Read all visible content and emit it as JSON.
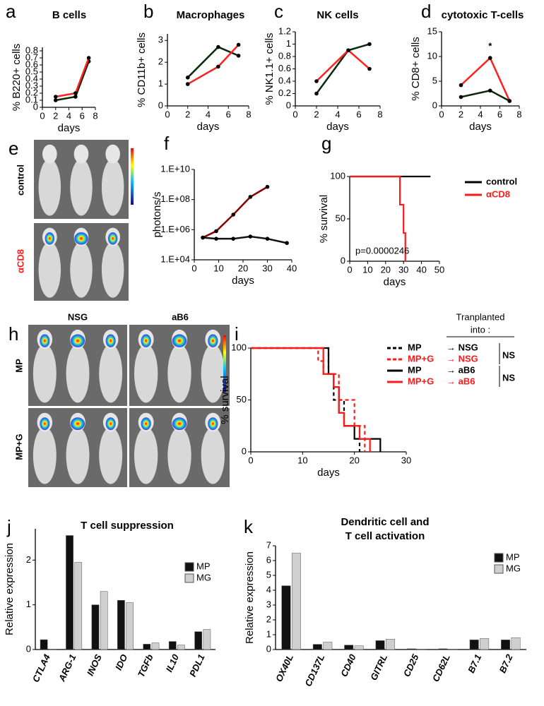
{
  "panels": {
    "e": {
      "label": "e",
      "rows": [
        "control",
        "αCD8"
      ]
    },
    "h": {
      "label": "h",
      "columns": [
        "NSG",
        "aB6"
      ],
      "rows": [
        "MP",
        "MP+G"
      ]
    }
  },
  "chart_data": [
    {
      "type": "line",
      "panel": "a",
      "title": "B cells",
      "y_label": "% B220+ cells",
      "x_label": "days",
      "x": [
        2,
        5,
        7
      ],
      "xlim": [
        0,
        8
      ],
      "xticks": [
        0,
        2,
        4,
        6,
        8
      ],
      "ylim": [
        0,
        0.85
      ],
      "yticks": [
        0,
        0.1,
        0.2,
        0.3,
        0.4,
        0.5,
        0.6,
        0.7,
        0.8
      ],
      "series": [
        {
          "color": "#0b2a0b",
          "values": [
            0.1,
            0.15,
            0.65
          ]
        },
        {
          "color": "#ff2020",
          "values": [
            0.15,
            0.2,
            0.7
          ]
        }
      ]
    },
    {
      "type": "line",
      "panel": "b",
      "title": "Macrophages",
      "y_label": "% CD11b+ cells",
      "x_label": "days",
      "x": [
        2,
        5,
        7
      ],
      "xlim": [
        0,
        8
      ],
      "xticks": [
        0,
        2,
        4,
        6,
        8
      ],
      "ylim": [
        0,
        3.3
      ],
      "yticks": [
        0,
        1,
        2,
        3
      ],
      "series": [
        {
          "color": "#0b2a0b",
          "values": [
            1.3,
            2.7,
            2.3
          ]
        },
        {
          "color": "#ff2020",
          "values": [
            1.0,
            1.8,
            2.8
          ]
        }
      ]
    },
    {
      "type": "line",
      "panel": "c",
      "title": "NK cells",
      "y_label": "% NK1.1+ cells",
      "x_label": "days",
      "x": [
        2,
        5,
        7
      ],
      "xlim": [
        0,
        8
      ],
      "xticks": [
        0,
        2,
        4,
        6,
        8
      ],
      "ylim": [
        0,
        1.2
      ],
      "yticks": [
        0,
        0.2,
        0.4,
        0.6,
        0.8,
        1,
        1.2
      ],
      "series": [
        {
          "color": "#0b2a0b",
          "values": [
            0.2,
            0.9,
            1.0
          ]
        },
        {
          "color": "#ff2020",
          "values": [
            0.4,
            0.9,
            0.6
          ]
        }
      ]
    },
    {
      "type": "line",
      "panel": "d",
      "title": "cytotoxic T-cells",
      "y_label": "% CD8+ cells",
      "x_label": "days",
      "annotation": "*",
      "x": [
        2,
        5,
        7
      ],
      "xlim": [
        0,
        8
      ],
      "xticks": [
        0,
        2,
        4,
        6,
        8
      ],
      "ylim": [
        0,
        15
      ],
      "yticks": [
        0,
        5,
        10,
        15
      ],
      "series": [
        {
          "color": "#ff2020",
          "values": [
            4.2,
            9.7,
            1.0
          ]
        },
        {
          "color": "#0b2a0b",
          "values": [
            1.8,
            3.1,
            1.0
          ]
        }
      ]
    },
    {
      "type": "line",
      "panel": "f",
      "y_label": "photons/s",
      "x_label": "days",
      "ylog": true,
      "x": [
        3.5,
        9,
        16,
        23,
        30,
        38
      ],
      "xlim": [
        0,
        40
      ],
      "xticks": [
        0,
        10,
        20,
        30,
        40
      ],
      "ylim": [
        10000,
        10000000000
      ],
      "yticks": [
        {
          "value": 10000,
          "label": "1.E+04"
        },
        {
          "value": 1000000,
          "label": "1.E+06"
        },
        {
          "value": 100000000,
          "label": "1.E+08"
        },
        {
          "value": 10000000000,
          "label": "1.E+10"
        }
      ],
      "series": [
        {
          "color": "#8b0000",
          "values": [
            300000,
            800000,
            10000000,
            150000000,
            700000000,
            null
          ]
        },
        {
          "color": "#111111",
          "values": [
            300000,
            250000,
            250000,
            350000,
            250000,
            130000
          ]
        }
      ]
    },
    {
      "type": "step",
      "panel": "g",
      "y_label": "% survival",
      "x_label": "days",
      "annotation": "p=0.0000246",
      "xlim": [
        0,
        50
      ],
      "xticks": [
        0,
        10,
        20,
        30,
        40,
        50
      ],
      "ylim": [
        0,
        100
      ],
      "yticks": [
        0,
        50,
        100
      ],
      "series": [
        {
          "name": "control",
          "color": "#000000",
          "x": [
            0,
            45
          ],
          "values": [
            100,
            100
          ]
        },
        {
          "name": "αCD8",
          "color": "#ff1a1a",
          "x": [
            0,
            28,
            30,
            31
          ],
          "values": [
            100,
            66.7,
            33.3,
            0
          ]
        }
      ]
    },
    {
      "type": "step",
      "panel": "i",
      "y_label": "% survival",
      "x_label": "days",
      "legend_title": [
        "Tranplanted",
        "into :"
      ],
      "ns_labels": [
        "NS",
        "NS"
      ],
      "xlim": [
        0,
        30
      ],
      "xticks": [
        0,
        10,
        20,
        30
      ],
      "ylim": [
        0,
        100
      ],
      "yticks": [
        0,
        50,
        100
      ],
      "series": [
        {
          "name": "MP",
          "destination": "→ NSG",
          "color": "#000000",
          "dash": true,
          "x": [
            0,
            15,
            16,
            18,
            21
          ],
          "values": [
            100,
            75,
            50,
            25,
            0
          ]
        },
        {
          "name": "MP+G",
          "destination": "→ NSG",
          "color": "#ff1a1a",
          "dash": true,
          "x": [
            0,
            13,
            14,
            17,
            20,
            22
          ],
          "values": [
            100,
            87.5,
            75,
            50,
            25,
            0
          ]
        },
        {
          "name": "MP",
          "destination": "→ aB6",
          "color": "#000000",
          "x": [
            0,
            15,
            16,
            17,
            18,
            20,
            25
          ],
          "values": [
            100,
            75,
            62.5,
            37.5,
            25,
            12.5,
            0
          ]
        },
        {
          "name": "MP+G",
          "destination": "→ aB6",
          "color": "#ff1a1a",
          "x": [
            0,
            14,
            16,
            17,
            18,
            21,
            23
          ],
          "values": [
            100,
            75,
            62.5,
            37.5,
            25,
            12.5,
            0
          ]
        }
      ]
    },
    {
      "type": "bar",
      "panel": "j",
      "title": "T cell suppression",
      "y_label": "Relative expression",
      "categories": [
        "CTLA4",
        "ARG-1",
        "INOS",
        "IDO",
        "TGFb",
        "IL10",
        "PDL1"
      ],
      "ylim": [
        0,
        2.7
      ],
      "yticks": [
        0,
        1,
        2
      ],
      "series": [
        {
          "name": "MP",
          "color": "#111111",
          "values": [
            0.22,
            2.55,
            1.0,
            1.1,
            0.12,
            0.18,
            0.4
          ]
        },
        {
          "name": "MG",
          "color": "#cfcfcf",
          "values": [
            0.01,
            1.95,
            1.3,
            1.05,
            0.15,
            0.1,
            0.45
          ]
        }
      ]
    },
    {
      "type": "bar",
      "panel": "k",
      "title": [
        "Dendritic cell and",
        "T cell activation"
      ],
      "y_label": "Relative expression",
      "categories": [
        "OX40L",
        "CD137L",
        "CD40",
        "GITRL",
        "CD25",
        "CD62L",
        "B7.1",
        "B7.2"
      ],
      "ylim": [
        0,
        7
      ],
      "yticks": [
        0,
        1,
        2,
        3,
        4,
        5,
        6,
        7
      ],
      "series": [
        {
          "name": "MP",
          "color": "#111111",
          "values": [
            4.3,
            0.35,
            0.3,
            0.6,
            0.05,
            0.05,
            0.65,
            0.65
          ]
        },
        {
          "name": "MG",
          "color": "#cfcfcf",
          "values": [
            6.5,
            0.5,
            0.25,
            0.7,
            0.03,
            0.03,
            0.75,
            0.8
          ]
        }
      ]
    }
  ]
}
